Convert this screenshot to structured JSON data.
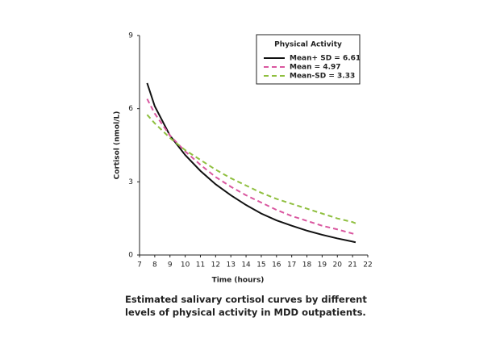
{
  "chart_data": {
    "type": "line",
    "xlabel": "Time (hours)",
    "ylabel": "Cortisol (nmol/L)",
    "legend_title": "Physical Activity",
    "caption": "Estimated salivary cortisol curves by different levels of physical activity in MDD outpatients.",
    "x": [
      7.5,
      8,
      9,
      10,
      11,
      12,
      13,
      14,
      15,
      16,
      17,
      18,
      19,
      20,
      21,
      21.2
    ],
    "series": [
      {
        "name": "Mean+ SD = 6.61",
        "color": "#111111",
        "dashed": false,
        "values": [
          7.05,
          6.1,
          4.9,
          4.1,
          3.45,
          2.9,
          2.45,
          2.05,
          1.7,
          1.42,
          1.2,
          1.0,
          0.83,
          0.68,
          0.55,
          0.52
        ]
      },
      {
        "name": "Mean = 4.97",
        "color": "#d9569f",
        "dashed": true,
        "values": [
          6.4,
          5.8,
          4.9,
          4.25,
          3.7,
          3.2,
          2.8,
          2.45,
          2.15,
          1.85,
          1.6,
          1.4,
          1.2,
          1.05,
          0.88,
          0.85
        ]
      },
      {
        "name": "Mean-SD = 3.33",
        "color": "#8fbf3f",
        "dashed": true,
        "values": [
          5.75,
          5.4,
          4.8,
          4.3,
          3.9,
          3.5,
          3.15,
          2.85,
          2.55,
          2.3,
          2.1,
          1.9,
          1.7,
          1.5,
          1.35,
          1.3
        ]
      }
    ],
    "xlim": [
      7,
      22
    ],
    "xticks": [
      7,
      8,
      9,
      10,
      11,
      12,
      13,
      14,
      15,
      16,
      17,
      18,
      19,
      20,
      21,
      22
    ],
    "ylim": [
      0,
      9
    ],
    "yticks": [
      0,
      3,
      6,
      9
    ]
  }
}
